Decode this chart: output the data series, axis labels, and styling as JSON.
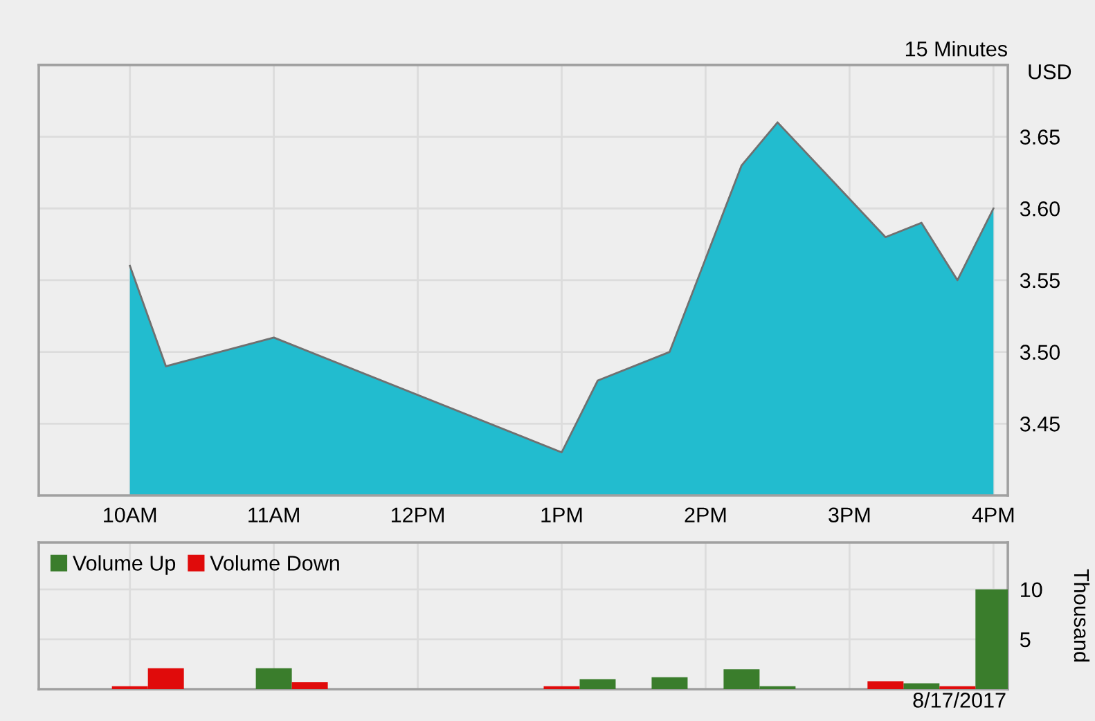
{
  "chart_data": [
    {
      "type": "area",
      "subtitle": "15 Minutes",
      "ylabel": "USD",
      "x": [
        "2017-08-17T10:00",
        "2017-08-17T10:15",
        "2017-08-17T11:00",
        "2017-08-17T13:00",
        "2017-08-17T13:15",
        "2017-08-17T13:45",
        "2017-08-17T14:15",
        "2017-08-17T14:30",
        "2017-08-17T15:15",
        "2017-08-17T15:30",
        "2017-08-17T15:45",
        "2017-08-17T16:00"
      ],
      "series": [
        {
          "color": "#22bccf",
          "values": [
            3.56,
            3.49,
            3.51,
            3.43,
            3.48,
            3.5,
            3.63,
            3.66,
            3.58,
            3.59,
            3.55,
            3.6
          ]
        }
      ],
      "xlim": [
        "2017-08-17T09:22",
        "2017-08-17T16:06"
      ],
      "ylim": [
        3.4,
        3.7
      ],
      "xticks": [
        {
          "value": "2017-08-17T10:00",
          "label": "10AM"
        },
        {
          "value": "2017-08-17T11:00",
          "label": "11AM"
        },
        {
          "value": "2017-08-17T12:00",
          "label": "12PM"
        },
        {
          "value": "2017-08-17T13:00",
          "label": "1PM"
        },
        {
          "value": "2017-08-17T14:00",
          "label": "2PM"
        },
        {
          "value": "2017-08-17T15:00",
          "label": "3PM"
        },
        {
          "value": "2017-08-17T16:00",
          "label": "4PM"
        }
      ],
      "yticks": [
        3.45,
        {
          "value": 3.5,
          "label": "3.50"
        },
        3.55,
        {
          "value": 3.6,
          "label": "3.60"
        },
        3.65
      ],
      "grid": true
    },
    {
      "type": "bar",
      "ylabel": "Thousand",
      "annotations": [
        "8/17/2017"
      ],
      "series": [
        {
          "name": "Volume Up",
          "color": "#3a7d2c",
          "x": [
            "2017-08-17T11:00",
            "2017-08-17T13:15",
            "2017-08-17T13:45",
            "2017-08-17T14:15",
            "2017-08-17T14:30",
            "2017-08-17T15:30",
            "2017-08-17T16:00"
          ],
          "values": [
            2.1,
            1.0,
            1.2,
            2.0,
            0.3,
            0.6,
            10
          ]
        },
        {
          "name": "Volume Down",
          "color": "#e00b0b",
          "x": [
            "2017-08-17T10:00",
            "2017-08-17T10:15",
            "2017-08-17T11:15",
            "2017-08-17T13:00",
            "2017-08-17T15:15",
            "2017-08-17T15:45"
          ],
          "values": [
            0.3,
            2.1,
            0.7,
            0.3,
            0.8,
            0.3
          ]
        }
      ],
      "xlim": [
        "2017-08-17T09:22",
        "2017-08-17T16:06"
      ],
      "ylim": [
        0,
        14.7
      ],
      "xticks": [
        {
          "value": "2017-08-17T10:00",
          "label": null
        },
        {
          "value": "2017-08-17T11:00",
          "label": null
        },
        {
          "value": "2017-08-17T12:00",
          "label": null
        },
        {
          "value": "2017-08-17T13:00",
          "label": null
        },
        {
          "value": "2017-08-17T14:00",
          "label": null
        },
        {
          "value": "2017-08-17T15:00",
          "label": null
        },
        {
          "value": "2017-08-17T16:00",
          "label": null
        }
      ],
      "yticks": [
        5,
        10
      ],
      "tick_labels": "y",
      "grid": true,
      "legend": "top left"
    }
  ]
}
